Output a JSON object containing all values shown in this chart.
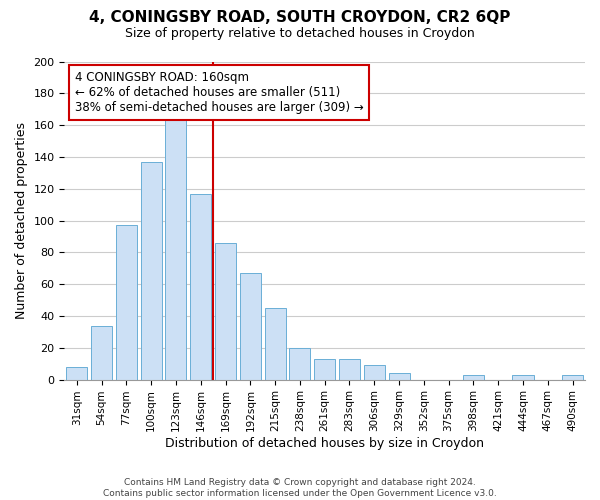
{
  "title": "4, CONINGSBY ROAD, SOUTH CROYDON, CR2 6QP",
  "subtitle": "Size of property relative to detached houses in Croydon",
  "xlabel": "Distribution of detached houses by size in Croydon",
  "ylabel": "Number of detached properties",
  "footer_line1": "Contains HM Land Registry data © Crown copyright and database right 2024.",
  "footer_line2": "Contains public sector information licensed under the Open Government Licence v3.0.",
  "bar_labels": [
    "31sqm",
    "54sqm",
    "77sqm",
    "100sqm",
    "123sqm",
    "146sqm",
    "169sqm",
    "192sqm",
    "215sqm",
    "238sqm",
    "261sqm",
    "283sqm",
    "306sqm",
    "329sqm",
    "352sqm",
    "375sqm",
    "398sqm",
    "421sqm",
    "444sqm",
    "467sqm",
    "490sqm"
  ],
  "bar_heights": [
    8,
    34,
    97,
    137,
    165,
    117,
    86,
    67,
    45,
    20,
    13,
    13,
    9,
    4,
    0,
    0,
    3,
    0,
    3,
    0,
    3
  ],
  "bar_color": "#cce0f5",
  "bar_edge_color": "#6aaed6",
  "vline_x": 5.5,
  "vline_color": "#cc0000",
  "annotation_title": "4 CONINGSBY ROAD: 160sqm",
  "annotation_line1": "← 62% of detached houses are smaller (511)",
  "annotation_line2": "38% of semi-detached houses are larger (309) →",
  "annotation_box_edge": "#cc0000",
  "ylim": [
    0,
    200
  ],
  "yticks": [
    0,
    20,
    40,
    60,
    80,
    100,
    120,
    140,
    160,
    180,
    200
  ],
  "background_color": "#ffffff",
  "grid_color": "#cccccc"
}
